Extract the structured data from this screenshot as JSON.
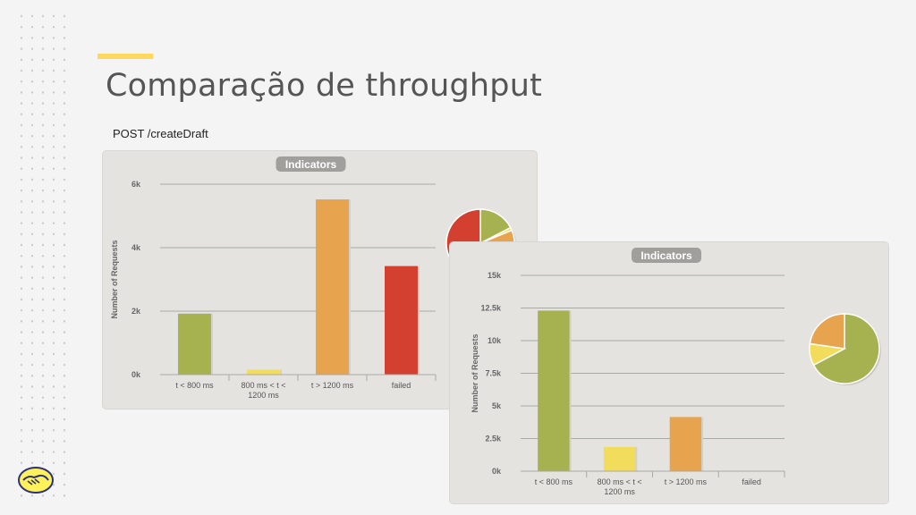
{
  "slide": {
    "title": "Comparação de throughput",
    "subtitle": "POST /createDraft"
  },
  "colors": {
    "accent": "#fdd75e",
    "green": "#a6b150",
    "yellow": "#f2dc5b",
    "orange": "#e8a34e",
    "red": "#d44030",
    "panel": "#e4e3df"
  },
  "chart_data": [
    {
      "type": "bar",
      "title": "Indicators",
      "ylabel": "Number of Requests",
      "xlabel": "",
      "categories": [
        "t < 800 ms",
        "800 ms < t < 1200 ms",
        "t > 1200 ms",
        "failed"
      ],
      "category_lines": [
        [
          "t < 800 ms"
        ],
        [
          "800 ms < t <",
          "1200 ms"
        ],
        [
          "t > 1200 ms"
        ],
        [
          "failed"
        ]
      ],
      "values": [
        1920,
        150,
        5520,
        3420
      ],
      "bar_colors": [
        "#a6b150",
        "#f2dc5b",
        "#e8a34e",
        "#d44030"
      ],
      "ylim": [
        0,
        6000
      ],
      "yticks": [
        0,
        2000,
        4000,
        6000
      ],
      "ytick_labels": [
        "0k",
        "2k",
        "4k",
        "6k"
      ],
      "grid": true,
      "pie": {
        "values": [
          1920,
          150,
          5520,
          3420
        ],
        "colors": [
          "#a6b150",
          "#f2dc5b",
          "#e8a34e",
          "#d44030"
        ]
      }
    },
    {
      "type": "bar",
      "title": "Indicators",
      "ylabel": "Number of Requests",
      "xlabel": "",
      "categories": [
        "t < 800 ms",
        "800 ms < t < 1200 ms",
        "t > 1200 ms",
        "failed"
      ],
      "category_lines": [
        [
          "t < 800 ms"
        ],
        [
          "800 ms < t <",
          "1200 ms"
        ],
        [
          "t > 1200 ms"
        ],
        [
          "failed"
        ]
      ],
      "values": [
        12300,
        1850,
        4150,
        0
      ],
      "bar_colors": [
        "#a6b150",
        "#f2dc5b",
        "#e8a34e",
        "#d44030"
      ],
      "ylim": [
        0,
        15000
      ],
      "yticks": [
        0,
        2500,
        5000,
        7500,
        10000,
        12500,
        15000
      ],
      "ytick_labels": [
        "0k",
        "2.5k",
        "5k",
        "7.5k",
        "10k",
        "12.5k",
        "15k"
      ],
      "grid": true,
      "pie": {
        "values": [
          12300,
          1850,
          4150,
          0
        ],
        "colors": [
          "#a6b150",
          "#f2dc5b",
          "#e8a34e",
          "#d44030"
        ]
      }
    }
  ]
}
